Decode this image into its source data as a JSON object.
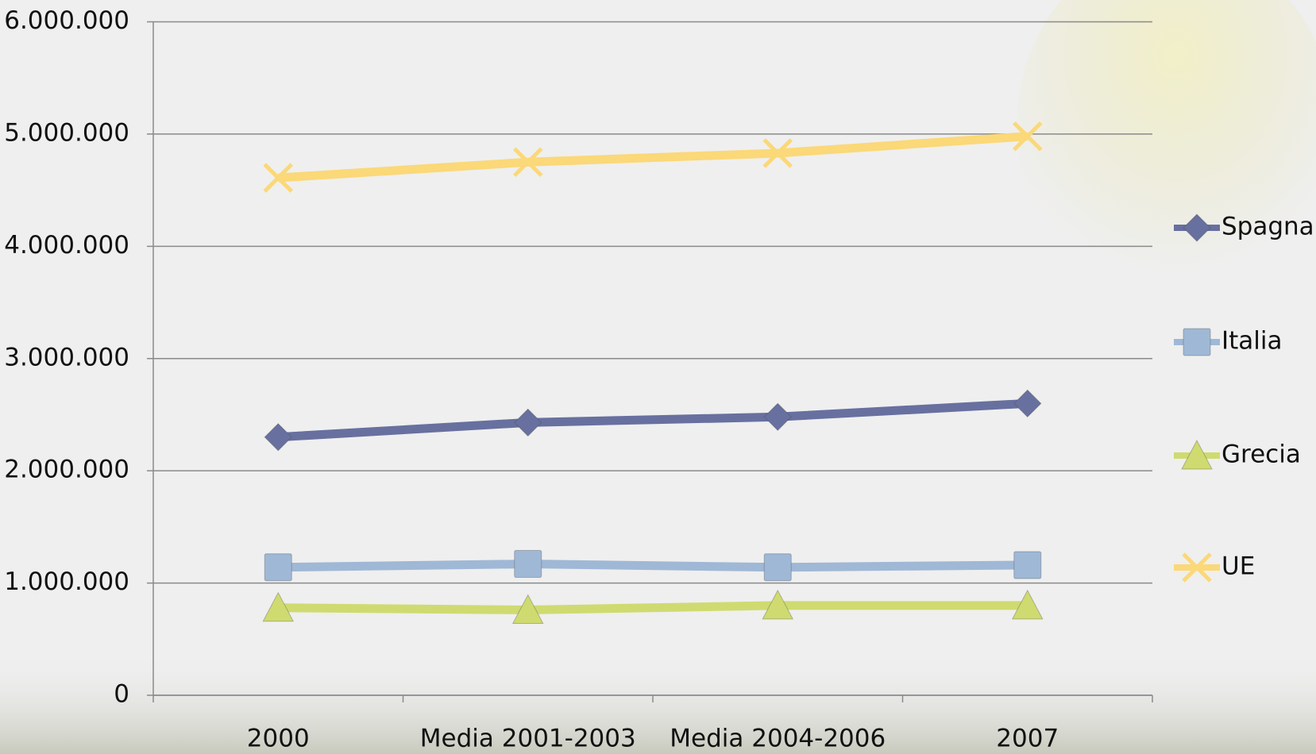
{
  "chart_data": {
    "type": "line",
    "categories": [
      "2000",
      "Media 2001-2003",
      "Media 2004-2006",
      "2007"
    ],
    "series": [
      {
        "name": "Spagna",
        "color": "#67709f",
        "marker": "diamond",
        "values": [
          2300000,
          2430000,
          2480000,
          2600000
        ]
      },
      {
        "name": "Italia",
        "color": "#9fb8d6",
        "marker": "square",
        "values": [
          1140000,
          1170000,
          1140000,
          1160000
        ]
      },
      {
        "name": "Grecia",
        "color": "#cfdb70",
        "marker": "triangle",
        "values": [
          780000,
          760000,
          800000,
          800000
        ]
      },
      {
        "name": "UE",
        "color": "#fbd878",
        "marker": "x",
        "values": [
          4610000,
          4750000,
          4830000,
          4980000
        ]
      }
    ],
    "ylim": [
      0,
      6000000
    ],
    "yticks": [
      0,
      {
        "value": 1000000,
        "label": "1.000.000"
      },
      {
        "value": 2000000,
        "label": "2.000.000"
      },
      {
        "value": 3000000,
        "label": "3.000.000"
      },
      {
        "value": 4000000,
        "label": "4.000.000"
      },
      {
        "value": 5000000,
        "label": "5.000.000"
      },
      {
        "value": 6000000,
        "label": "6.000.000"
      }
    ],
    "grid": true,
    "legend": "right"
  }
}
